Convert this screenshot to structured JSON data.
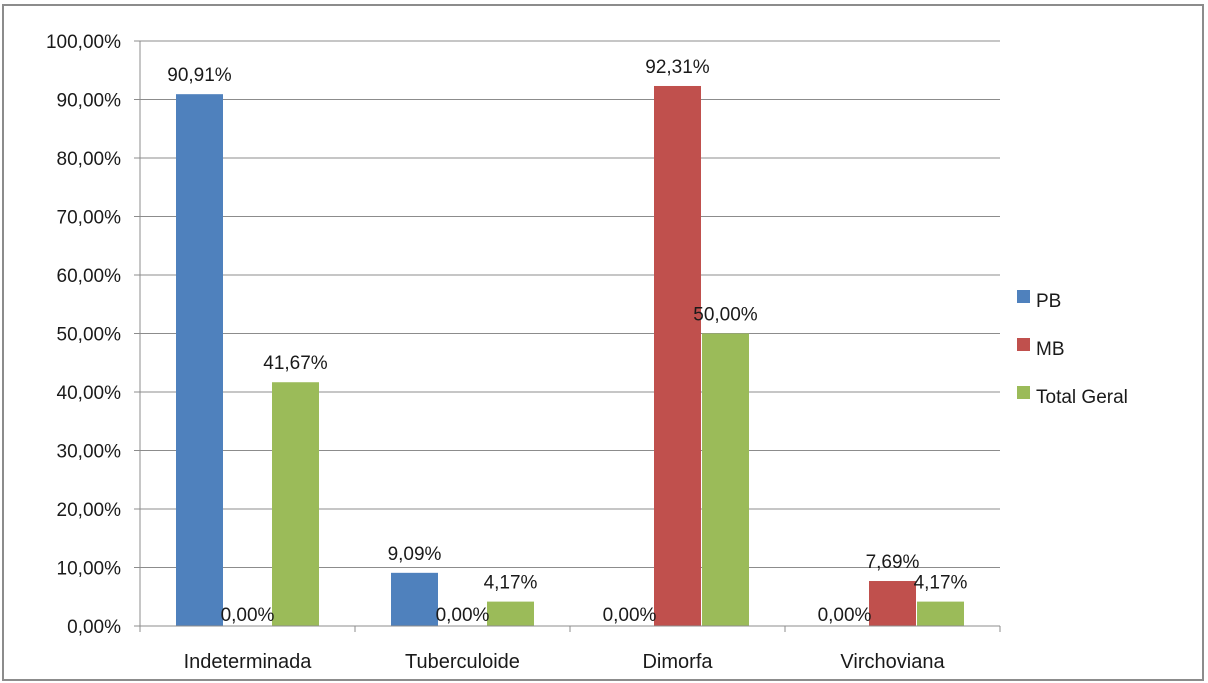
{
  "chart_data": {
    "type": "bar",
    "categories": [
      "Indeterminada",
      "Tuberculoide",
      "Dimorfa",
      "Virchoviana"
    ],
    "series": [
      {
        "name": "PB",
        "color": "#4f81bd",
        "values": [
          90.91,
          9.09,
          0.0,
          0.0
        ],
        "labels": [
          "90,91%",
          "9,09%",
          "0,00%",
          "0,00%"
        ]
      },
      {
        "name": "MB",
        "color": "#c0504d",
        "values": [
          0.0,
          0.0,
          92.31,
          7.69
        ],
        "labels": [
          "0,00%",
          "0,00%",
          "92,31%",
          "7,69%"
        ]
      },
      {
        "name": "Total Geral",
        "color": "#9bbb59",
        "values": [
          41.67,
          4.17,
          50.0,
          4.17
        ],
        "labels": [
          "41,67%",
          "4,17%",
          "50,00%",
          "4,17%"
        ]
      }
    ],
    "yticks": [
      "0,00%",
      "10,00%",
      "20,00%",
      "30,00%",
      "40,00%",
      "50,00%",
      "60,00%",
      "70,00%",
      "80,00%",
      "90,00%",
      "100,00%"
    ],
    "ylim": [
      0,
      100
    ],
    "grid": true,
    "legend_position": "right"
  }
}
